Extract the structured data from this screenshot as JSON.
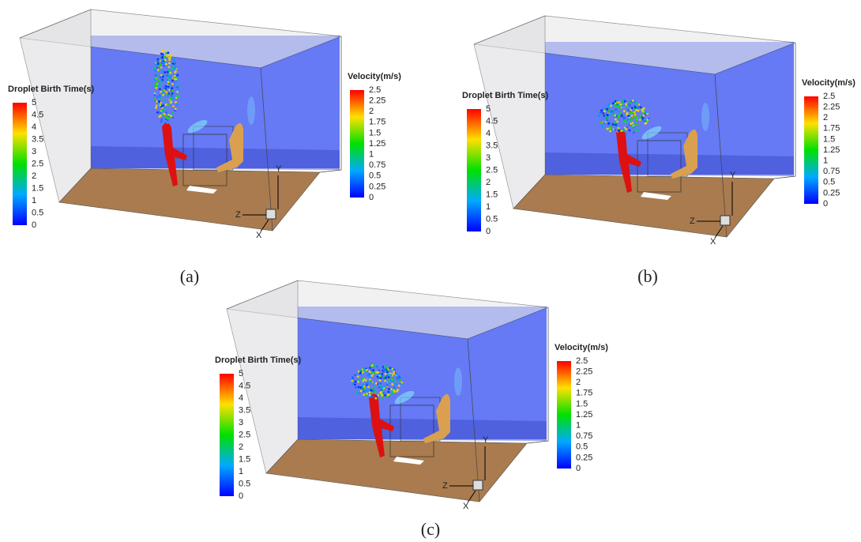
{
  "panels": [
    {
      "caption": "(a)",
      "droplet_legend": {
        "title": "Droplet Birth Time(s)",
        "ticks": [
          5,
          4.5,
          4,
          3.5,
          3,
          2.5,
          2,
          1.5,
          1,
          0.5,
          0
        ]
      },
      "velocity_legend": {
        "title": "Velocity(m/s)",
        "ticks": [
          2.5,
          2.25,
          2,
          1.75,
          1.5,
          1.25,
          1,
          0.75,
          0.5,
          0.25,
          0
        ]
      },
      "axes": {
        "x": "X",
        "y": "Y",
        "z": "Z"
      }
    },
    {
      "caption": "(b)",
      "droplet_legend": {
        "title": "Droplet Birth Time(s)",
        "ticks": [
          5,
          4.5,
          4,
          3.5,
          3,
          2.5,
          2,
          1.5,
          1,
          0.5,
          0
        ]
      },
      "velocity_legend": {
        "title": "Velocity(m/s)",
        "ticks": [
          2.5,
          2.25,
          2,
          1.75,
          1.5,
          1.25,
          1,
          0.75,
          0.5,
          0.25,
          0
        ]
      },
      "axes": {
        "x": "X",
        "y": "Y",
        "z": "Z"
      }
    },
    {
      "caption": "(c)",
      "droplet_legend": {
        "title": "Droplet Birth Time(s)",
        "ticks": [
          5,
          4.5,
          4,
          3.5,
          3,
          2.5,
          2,
          1.5,
          1,
          0.5,
          0
        ]
      },
      "velocity_legend": {
        "title": "Velocity(m/s)",
        "ticks": [
          2.5,
          2.25,
          2,
          1.75,
          1.5,
          1.25,
          1,
          0.75,
          0.5,
          0.25,
          0
        ]
      },
      "axes": {
        "x": "X",
        "y": "Y",
        "z": "Z"
      }
    }
  ]
}
